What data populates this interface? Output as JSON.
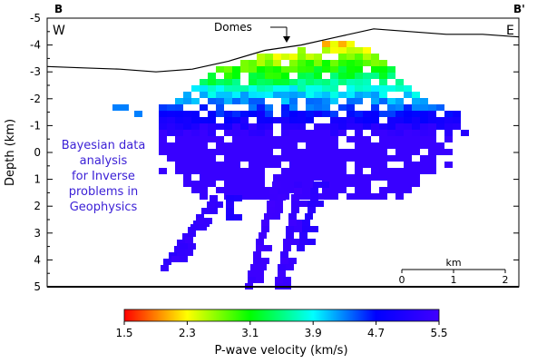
{
  "figure": {
    "section_label_left": "B",
    "section_label_right": "B'",
    "direction_left": "W",
    "direction_right": "E",
    "annotation": "Domes",
    "overlay_text": [
      "Bayesian data",
      "analysis",
      "for Inverse",
      "problems in",
      "Geophysics"
    ],
    "overlay_color": "#3a1fd6"
  },
  "chart_data": {
    "type": "heatmap",
    "title": "",
    "ylabel": "Depth (km)",
    "y_ticks": [
      "-5",
      "-4",
      "-3",
      "-2",
      "-1",
      "0",
      "1",
      "2",
      "3",
      "4",
      "5"
    ],
    "y_tick_values": [
      -5,
      -4,
      -3,
      -2,
      -1,
      0,
      1,
      2,
      3,
      4,
      5
    ],
    "ylim": [
      -5,
      5
    ],
    "y_inverted": true,
    "scale_bar": {
      "label": "km",
      "ticks": [
        "0",
        "1",
        "2"
      ],
      "values": [
        0,
        1,
        2
      ]
    },
    "colorbar": {
      "label": "P-wave velocity (km/s)",
      "ticks": [
        "1.5",
        "2.3",
        "3.1",
        "3.9",
        "4.7",
        "5.5"
      ],
      "values": [
        1.5,
        2.3,
        3.1,
        3.9,
        4.7,
        5.5
      ],
      "range": [
        1.5,
        5.5
      ],
      "colormap": [
        "#ff0000",
        "#ffff00",
        "#00ff00",
        "#00ffff",
        "#0000ff",
        "#4000ff"
      ]
    },
    "topography_depths": [
      -3.2,
      -3.15,
      -3.1,
      -3.0,
      -3.1,
      -3.4,
      -3.8,
      -4.0,
      -4.3,
      -4.6,
      -4.5,
      -4.4,
      -4.4,
      -4.3
    ],
    "domes_offset_km": 0.0
  }
}
